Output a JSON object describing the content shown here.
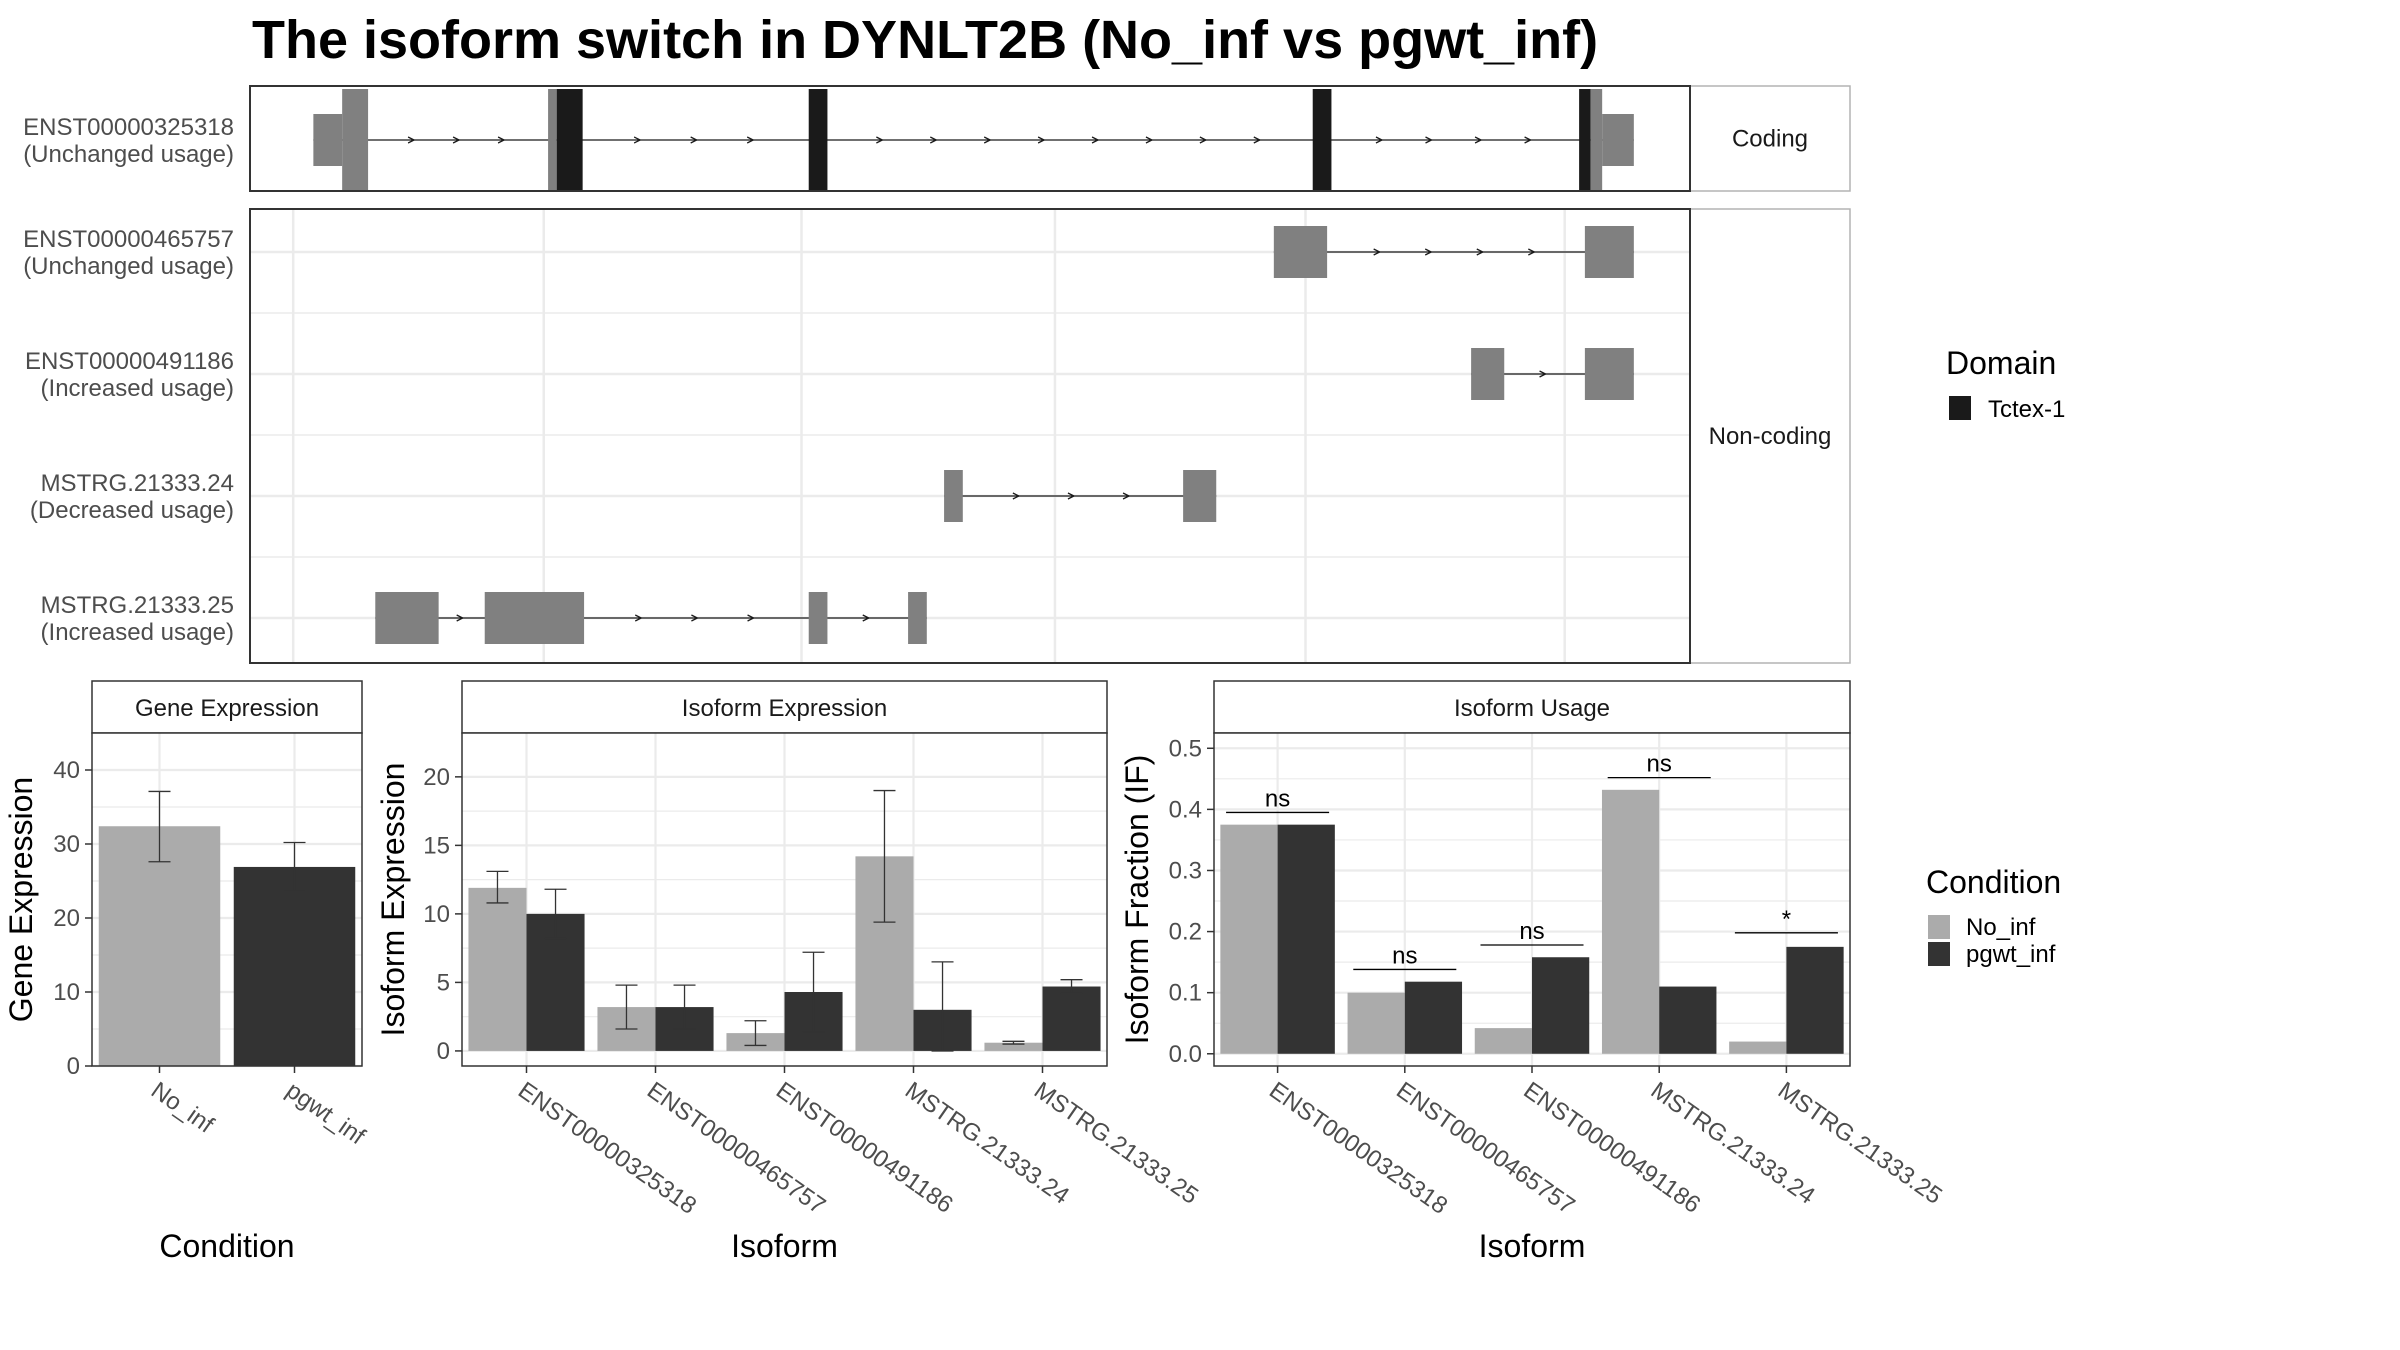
{
  "title": "The isoform switch in DYNLT2B (No_inf vs pgwt_inf)",
  "colors": {
    "no_inf": "#ababab",
    "pgwt_inf": "#333333",
    "exon": "#808080",
    "domain": "#1a1a1a",
    "grid": "#ebebeb",
    "panel_border": "#333333",
    "strip_border": "#b3b3b3"
  },
  "chart_data": [
    {
      "type": "gene-structure",
      "facets": [
        "Coding",
        "Non-coding"
      ],
      "legend": {
        "title": "Domain",
        "items": [
          "Tctex-1"
        ]
      },
      "x_range": [
        0,
        1
      ],
      "isoforms": [
        {
          "id": "ENST00000325318",
          "usage": "(Unchanged usage)",
          "facet": "Coding",
          "exons": [
            {
              "start": 0.044,
              "end": 0.064,
              "kind": "utr"
            },
            {
              "start": 0.064,
              "end": 0.082,
              "kind": "cds"
            },
            {
              "start": 0.207,
              "end": 0.213,
              "kind": "cds"
            },
            {
              "start": 0.213,
              "end": 0.231,
              "kind": "domain"
            },
            {
              "start": 0.388,
              "end": 0.401,
              "kind": "domain"
            },
            {
              "start": 0.738,
              "end": 0.751,
              "kind": "domain"
            },
            {
              "start": 0.923,
              "end": 0.931,
              "kind": "domain"
            },
            {
              "start": 0.931,
              "end": 0.939,
              "kind": "cds"
            },
            {
              "start": 0.939,
              "end": 0.961,
              "kind": "utr"
            }
          ]
        },
        {
          "id": "ENST00000465757",
          "usage": "(Unchanged usage)",
          "facet": "Non-coding",
          "exons": [
            {
              "start": 0.711,
              "end": 0.748,
              "kind": "utr"
            },
            {
              "start": 0.927,
              "end": 0.961,
              "kind": "utr"
            }
          ]
        },
        {
          "id": "ENST00000491186",
          "usage": "(Increased usage)",
          "facet": "Non-coding",
          "exons": [
            {
              "start": 0.848,
              "end": 0.871,
              "kind": "utr"
            },
            {
              "start": 0.927,
              "end": 0.961,
              "kind": "utr"
            }
          ]
        },
        {
          "id": "MSTRG.21333.24",
          "usage": "(Decreased usage)",
          "facet": "Non-coding",
          "exons": [
            {
              "start": 0.482,
              "end": 0.495,
              "kind": "utr"
            },
            {
              "start": 0.648,
              "end": 0.671,
              "kind": "utr"
            }
          ]
        },
        {
          "id": "MSTRG.21333.25",
          "usage": "(Increased usage)",
          "facet": "Non-coding",
          "exons": [
            {
              "start": 0.087,
              "end": 0.131,
              "kind": "utr"
            },
            {
              "start": 0.163,
              "end": 0.232,
              "kind": "utr"
            },
            {
              "start": 0.388,
              "end": 0.401,
              "kind": "utr"
            },
            {
              "start": 0.457,
              "end": 0.47,
              "kind": "utr"
            }
          ]
        }
      ]
    },
    {
      "type": "bar",
      "strip": "Gene Expression",
      "categories": [
        "No_inf",
        "pgwt_inf"
      ],
      "values": [
        32.4,
        26.9
      ],
      "error_low": [
        27.6,
        23.6
      ],
      "error_high": [
        37.1,
        30.2
      ],
      "ylim": [
        0,
        45
      ],
      "yticks": [
        0,
        10,
        20,
        30,
        40
      ],
      "xlabel": "Condition",
      "ylabel": "Gene Expression"
    },
    {
      "type": "bar",
      "strip": "Isoform Expression",
      "categories": [
        "ENST00000325318",
        "ENST00000465757",
        "ENST00000491186",
        "MSTRG.21333.24",
        "MSTRG.21333.25"
      ],
      "series": [
        {
          "name": "No_inf",
          "values": [
            11.9,
            3.2,
            1.3,
            14.2,
            0.6
          ],
          "error_low": [
            10.8,
            1.6,
            0.4,
            9.4,
            0.5
          ],
          "error_high": [
            13.1,
            4.8,
            2.2,
            19.0,
            0.7
          ]
        },
        {
          "name": "pgwt_inf",
          "values": [
            10.0,
            3.2,
            4.3,
            3.0,
            4.7
          ],
          "error_low": [
            8.2,
            1.6,
            1.4,
            0.0,
            4.2
          ],
          "error_high": [
            11.8,
            4.8,
            7.2,
            6.5,
            5.2
          ]
        }
      ],
      "ylim": [
        -1.1,
        23.2
      ],
      "yticks": [
        0,
        5,
        10,
        15,
        20
      ],
      "xlabel": "Isoform",
      "ylabel": "Isoform Expression"
    },
    {
      "type": "bar",
      "strip": "Isoform Usage",
      "categories": [
        "ENST00000325318",
        "ENST00000465757",
        "ENST00000491186",
        "MSTRG.21333.24",
        "MSTRG.21333.25"
      ],
      "series": [
        {
          "name": "No_inf",
          "values": [
            0.375,
            0.1,
            0.042,
            0.432,
            0.02
          ]
        },
        {
          "name": "pgwt_inf",
          "values": [
            0.375,
            0.118,
            0.158,
            0.11,
            0.175
          ]
        }
      ],
      "significance": [
        "ns",
        "ns",
        "ns",
        "ns",
        "*"
      ],
      "significance_y": [
        0.395,
        0.138,
        0.178,
        0.452,
        0.198
      ],
      "ylim": [
        -0.02,
        0.525
      ],
      "yticks": [
        0.0,
        0.1,
        0.2,
        0.3,
        0.4,
        0.5
      ],
      "ytick_labels": [
        "0.0",
        "0.1",
        "0.2",
        "0.3",
        "0.4",
        "0.5"
      ],
      "xlabel": "Isoform",
      "ylabel": "Isoform Fraction (IF)"
    }
  ],
  "condition_legend": {
    "title": "Condition",
    "items": [
      "No_inf",
      "pgwt_inf"
    ]
  }
}
